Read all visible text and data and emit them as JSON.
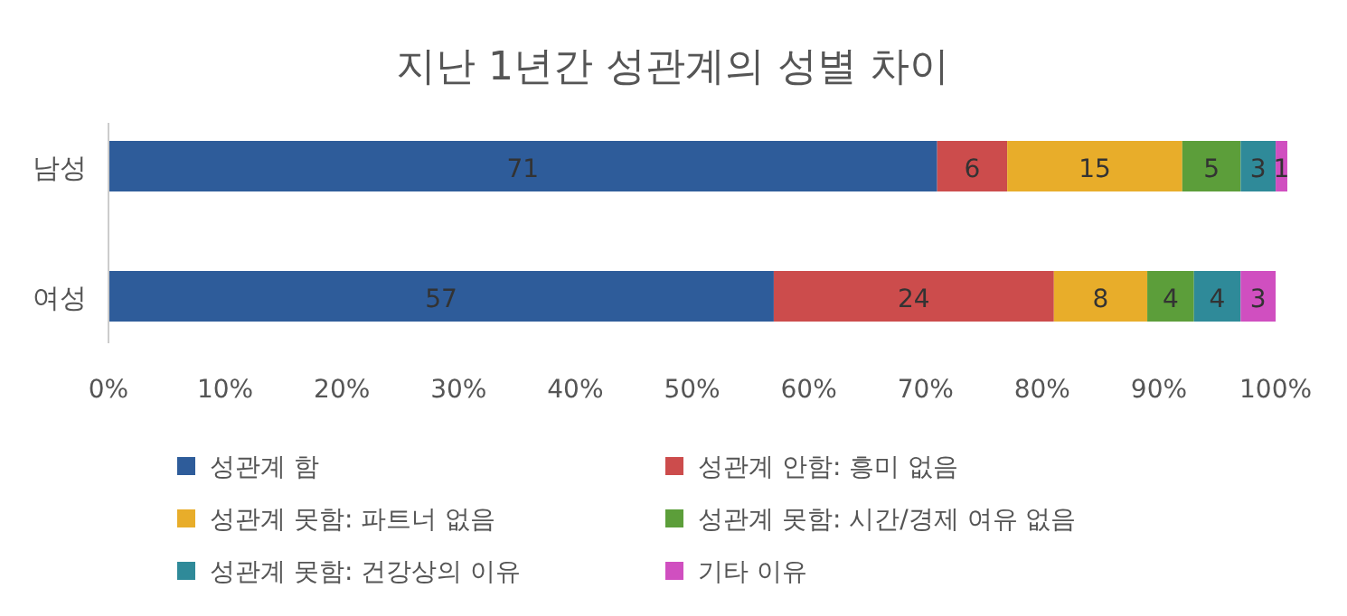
{
  "chart_data": {
    "type": "bar",
    "orientation": "horizontal",
    "stacked": true,
    "title": "지난 1년간 성관계의 성별 차이",
    "categories": [
      "남성",
      "여성"
    ],
    "series": [
      {
        "name": "성관계 함",
        "color": "#2e5c9a",
        "values": [
          71,
          57
        ]
      },
      {
        "name": "성관계 안함: 흥미 없음",
        "color": "#cc4c4c",
        "values": [
          6,
          24
        ]
      },
      {
        "name": "성관계 못함: 파트너 없음",
        "color": "#e8ad2a",
        "values": [
          15,
          8
        ]
      },
      {
        "name": "성관계 못함: 시간/경제 여유 없음",
        "color": "#5c9e3a",
        "values": [
          5,
          4
        ]
      },
      {
        "name": "성관계 못함: 건강상의 이유",
        "color": "#2f8a99",
        "values": [
          3,
          4
        ]
      },
      {
        "name": "기타 이유",
        "color": "#d04fc0",
        "values": [
          1,
          3
        ]
      }
    ],
    "xlim": [
      0,
      101
    ],
    "xticks": [
      {
        "value": 0,
        "label": "0%"
      },
      {
        "value": 10,
        "label": "10%"
      },
      {
        "value": 20,
        "label": "20%"
      },
      {
        "value": 30,
        "label": "30%"
      },
      {
        "value": 40,
        "label": "40%"
      },
      {
        "value": 50,
        "label": "50%"
      },
      {
        "value": 60,
        "label": "60%"
      },
      {
        "value": 70,
        "label": "70%"
      },
      {
        "value": 80,
        "label": "80%"
      },
      {
        "value": 90,
        "label": "90%"
      },
      {
        "value": 100,
        "label": "100%"
      }
    ],
    "data_labels": true,
    "legend": "bottom",
    "grid": false
  }
}
